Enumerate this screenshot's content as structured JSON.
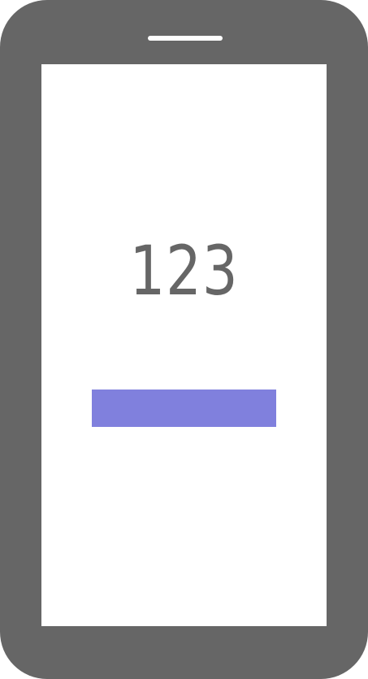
{
  "screen": {
    "counter_value": "123",
    "action_bar_color": "#8080DD"
  },
  "device": {
    "frame_color": "#666666",
    "screen_color": "#FFFFFF"
  }
}
